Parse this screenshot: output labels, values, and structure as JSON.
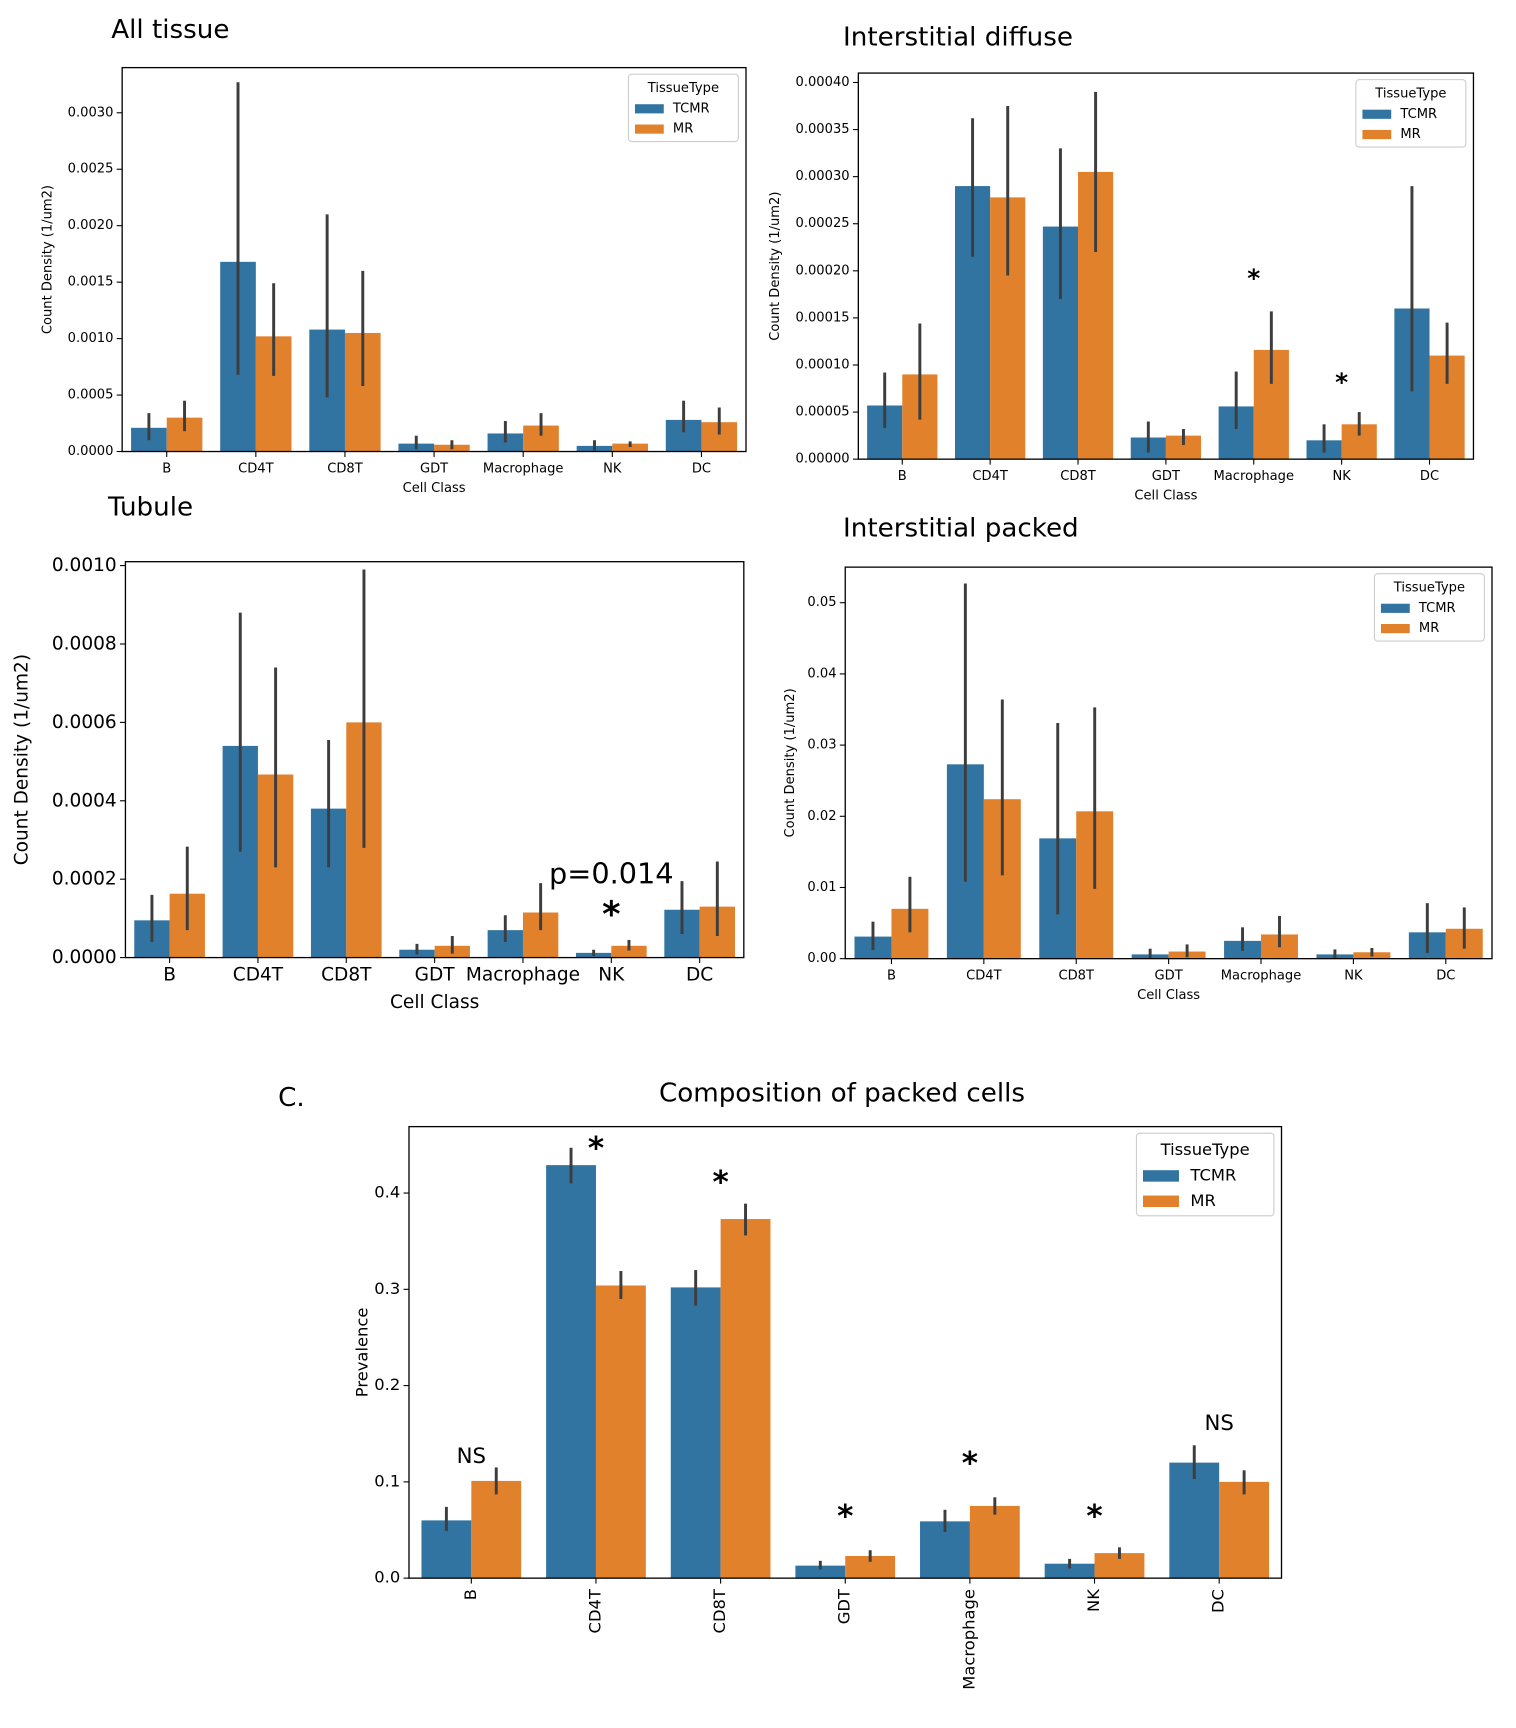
{
  "panel_label": "C.",
  "chart_data": [
    {
      "type": "bar",
      "title": "All tissue",
      "xlabel": "Cell Class",
      "ylabel": "Count Density (1/um2)",
      "categories": [
        "B",
        "CD4T",
        "CD8T",
        "GDT",
        "Macrophage",
        "NK",
        "DC"
      ],
      "legend": "upper right",
      "legend_title": "TissueType",
      "series": [
        {
          "name": "TCMR",
          "color": "#3274a1",
          "values": [
            0.00021,
            0.00168,
            0.00108,
            7e-05,
            0.00016,
            5e-05,
            0.00028
          ],
          "ci_low": [
            0.0001,
            0.00068,
            0.00048,
            2e-05,
            8e-05,
            1e-05,
            0.00017
          ],
          "ci_high": [
            0.00034,
            0.00327,
            0.0021,
            0.00014,
            0.00027,
            0.0001,
            0.00045
          ]
        },
        {
          "name": "MR",
          "color": "#e1812c",
          "values": [
            0.0003,
            0.00102,
            0.00105,
            6e-05,
            0.00023,
            7e-05,
            0.00026
          ],
          "ci_low": [
            0.00018,
            0.00067,
            0.00058,
            2e-05,
            0.00014,
            4e-05,
            0.00015
          ],
          "ci_high": [
            0.00045,
            0.00149,
            0.0016,
            0.0001,
            0.00034,
            9e-05,
            0.00039
          ]
        }
      ],
      "ylim": [
        0,
        0.0034
      ],
      "yticks": [
        {
          "value": 0,
          "label": "0.0000"
        },
        {
          "value": 0.0005,
          "label": "0.0005"
        },
        {
          "value": 0.001,
          "label": "0.0010"
        },
        {
          "value": 0.0015,
          "label": "0.0015"
        },
        {
          "value": 0.002,
          "label": "0.0020"
        },
        {
          "value": 0.0025,
          "label": "0.0025"
        },
        {
          "value": 0.003,
          "label": "0.0030"
        }
      ]
    },
    {
      "type": "bar",
      "title": "Interstitial diffuse",
      "xlabel": "Cell Class",
      "ylabel": "Count Density (1/um2)",
      "categories": [
        "B",
        "CD4T",
        "CD8T",
        "GDT",
        "Macrophage",
        "NK",
        "DC"
      ],
      "legend": "upper right",
      "legend_title": "TissueType",
      "series": [
        {
          "name": "TCMR",
          "color": "#3274a1",
          "values": [
            5.7e-05,
            0.00029,
            0.000247,
            2.3e-05,
            5.6e-05,
            2e-05,
            0.00016
          ],
          "ci_low": [
            3.3e-05,
            0.000215,
            0.00017,
            7e-06,
            3.2e-05,
            7e-06,
            7.2e-05
          ],
          "ci_high": [
            9.2e-05,
            0.000362,
            0.00033,
            4e-05,
            9.3e-05,
            3.7e-05,
            0.00029
          ]
        },
        {
          "name": "MR",
          "color": "#e1812c",
          "values": [
            9e-05,
            0.000278,
            0.000305,
            2.5e-05,
            0.000116,
            3.7e-05,
            0.00011
          ],
          "ci_low": [
            4.2e-05,
            0.000195,
            0.00022,
            1.5e-05,
            8e-05,
            2.5e-05,
            8e-05
          ],
          "ci_high": [
            0.000144,
            0.000375,
            0.00039,
            3.2e-05,
            0.000157,
            5e-05,
            0.000145
          ]
        }
      ],
      "ylim": [
        0,
        0.00041
      ],
      "yticks": [
        {
          "value": 0,
          "label": "0.00000"
        },
        {
          "value": 5e-05,
          "label": "0.00005"
        },
        {
          "value": 0.0001,
          "label": "0.00010"
        },
        {
          "value": 0.00015,
          "label": "0.00015"
        },
        {
          "value": 0.0002,
          "label": "0.00020"
        },
        {
          "value": 0.00025,
          "label": "0.00025"
        },
        {
          "value": 0.0003,
          "label": "0.00030"
        },
        {
          "value": 0.00035,
          "label": "0.00035"
        },
        {
          "value": 0.0004,
          "label": "0.00040"
        }
      ],
      "annotations": [
        {
          "text": "*",
          "category": 4,
          "y": 0.00019
        },
        {
          "text": "*",
          "category": 5,
          "y": 8e-05
        }
      ]
    },
    {
      "type": "bar",
      "title": "Tubule",
      "xlabel": "Cell Class",
      "ylabel": "Count Density (1/um2)",
      "categories": [
        "B",
        "CD4T",
        "CD8T",
        "GDT",
        "Macrophage",
        "NK",
        "DC"
      ],
      "series": [
        {
          "name": "TCMR",
          "color": "#3274a1",
          "values": [
            9.5e-05,
            0.00054,
            0.00038,
            2e-05,
            7e-05,
            1.2e-05,
            0.000122
          ],
          "ci_low": [
            4e-05,
            0.00027,
            0.00023,
            8e-06,
            4e-05,
            4e-06,
            6e-05
          ],
          "ci_high": [
            0.00016,
            0.00088,
            0.000555,
            3.5e-05,
            0.000108,
            2e-05,
            0.000195
          ]
        },
        {
          "name": "MR",
          "color": "#e1812c",
          "values": [
            0.000163,
            0.000467,
            0.0006,
            3e-05,
            0.000115,
            3e-05,
            0.00013
          ],
          "ci_low": [
            7e-05,
            0.00023,
            0.00028,
            1e-05,
            7e-05,
            1.8e-05,
            5.5e-05
          ],
          "ci_high": [
            0.000283,
            0.00074,
            0.00099,
            5.5e-05,
            0.00019,
            4.5e-05,
            0.000245
          ]
        }
      ],
      "ylim": [
        0,
        0.00101
      ],
      "yticks": [
        {
          "value": 0,
          "label": "0.0000"
        },
        {
          "value": 0.0002,
          "label": "0.0002"
        },
        {
          "value": 0.0004,
          "label": "0.0004"
        },
        {
          "value": 0.0006,
          "label": "0.0006"
        },
        {
          "value": 0.0008,
          "label": "0.0008"
        },
        {
          "value": 0.001,
          "label": "0.0010"
        }
      ],
      "annotations": [
        {
          "text": "p=0.014",
          "category": 5,
          "y": 0.00021
        },
        {
          "text": "*",
          "category": 5,
          "y": 0.000105
        }
      ]
    },
    {
      "type": "bar",
      "title": "Interstitial packed",
      "xlabel": "Cell Class",
      "ylabel": "Count Density (1/um2)",
      "categories": [
        "B",
        "CD4T",
        "CD8T",
        "GDT",
        "Macrophage",
        "NK",
        "DC"
      ],
      "legend": "upper right",
      "legend_title": "TissueType",
      "series": [
        {
          "name": "TCMR",
          "color": "#3274a1",
          "values": [
            0.0031,
            0.0273,
            0.0169,
            0.0006,
            0.0025,
            0.0006,
            0.0037
          ],
          "ci_low": [
            0.0012,
            0.0108,
            0.0062,
            0.0001,
            0.0011,
            0.0001,
            0.0008
          ],
          "ci_high": [
            0.0052,
            0.0527,
            0.0331,
            0.0014,
            0.0044,
            0.0013,
            0.0078
          ]
        },
        {
          "name": "MR",
          "color": "#e1812c",
          "values": [
            0.007,
            0.0224,
            0.0207,
            0.001,
            0.0034,
            0.0009,
            0.0042
          ],
          "ci_low": [
            0.0037,
            0.0117,
            0.0098,
            0.0002,
            0.0016,
            0.0003,
            0.0014
          ],
          "ci_high": [
            0.0115,
            0.0364,
            0.0353,
            0.002,
            0.006,
            0.0015,
            0.0072
          ]
        }
      ],
      "ylim": [
        0,
        0.055
      ],
      "yticks": [
        {
          "value": 0,
          "label": "0.00"
        },
        {
          "value": 0.01,
          "label": "0.01"
        },
        {
          "value": 0.02,
          "label": "0.02"
        },
        {
          "value": 0.03,
          "label": "0.03"
        },
        {
          "value": 0.04,
          "label": "0.04"
        },
        {
          "value": 0.05,
          "label": "0.05"
        }
      ]
    },
    {
      "type": "bar",
      "title": "Composition of packed cells",
      "ylabel": "Prevalence",
      "categories": [
        "B",
        "CD4T",
        "CD8T",
        "GDT",
        "Macrophage",
        "NK",
        "DC"
      ],
      "xtick_rotation": 90,
      "legend": "upper right",
      "legend_title": "TissueType",
      "series": [
        {
          "name": "TCMR",
          "color": "#3274a1",
          "values": [
            0.06,
            0.429,
            0.302,
            0.013,
            0.059,
            0.015,
            0.12
          ],
          "ci_low": [
            0.049,
            0.41,
            0.283,
            0.009,
            0.048,
            0.01,
            0.103
          ],
          "ci_high": [
            0.074,
            0.447,
            0.32,
            0.018,
            0.071,
            0.02,
            0.138
          ]
        },
        {
          "name": "MR",
          "color": "#e1812c",
          "values": [
            0.101,
            0.304,
            0.373,
            0.023,
            0.075,
            0.026,
            0.1
          ],
          "ci_low": [
            0.087,
            0.29,
            0.356,
            0.017,
            0.066,
            0.02,
            0.087
          ],
          "ci_high": [
            0.115,
            0.319,
            0.389,
            0.029,
            0.084,
            0.032,
            0.112
          ]
        }
      ],
      "ylim": [
        0,
        0.469
      ],
      "yticks": [
        {
          "value": 0,
          "label": "0.0"
        },
        0.1,
        0.2,
        0.3,
        0.4
      ],
      "annotations": [
        {
          "text": "NS",
          "category": 0,
          "y": 0.126
        },
        {
          "text": "*",
          "category": 1,
          "y": 0.445
        },
        {
          "text": "*",
          "category": 2,
          "y": 0.41
        },
        {
          "text": "*",
          "category": 3,
          "y": 0.063
        },
        {
          "text": "*",
          "category": 4,
          "y": 0.118
        },
        {
          "text": "*",
          "category": 5,
          "y": 0.063
        },
        {
          "text": "NS",
          "category": 6,
          "y": 0.16
        }
      ]
    }
  ]
}
